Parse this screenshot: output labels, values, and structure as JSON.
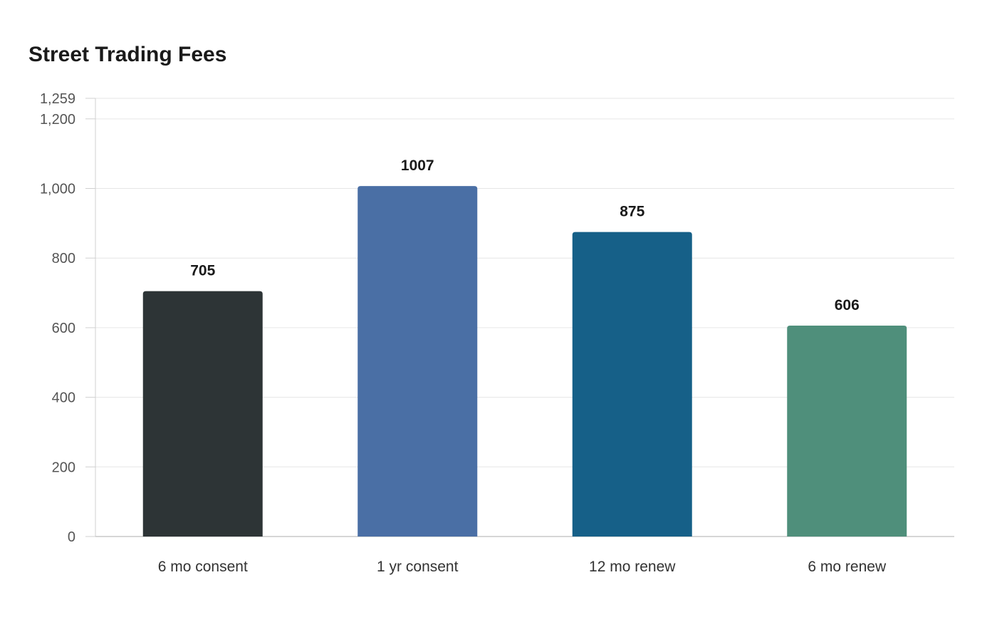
{
  "chart_data": {
    "type": "bar",
    "title": "Street Trading Fees",
    "xlabel": "",
    "ylabel": "",
    "categories": [
      "6 mo consent",
      "1 yr consent",
      "12 mo renew",
      "6 mo renew"
    ],
    "values": [
      705,
      1007,
      875,
      606
    ],
    "value_labels": [
      "705",
      "1007",
      "875",
      "606"
    ],
    "colors": [
      "#2d3436",
      "#4a6fa5",
      "#166088",
      "#4f8f7b"
    ],
    "ylim": [
      0,
      1259
    ],
    "yticks": [
      0,
      200,
      400,
      600,
      800,
      1000,
      1200,
      1259
    ],
    "ytick_labels": [
      "0",
      "200",
      "400",
      "600",
      "800",
      "1,000",
      "1,200",
      "1,259"
    ],
    "grid": true,
    "legend": "none"
  }
}
